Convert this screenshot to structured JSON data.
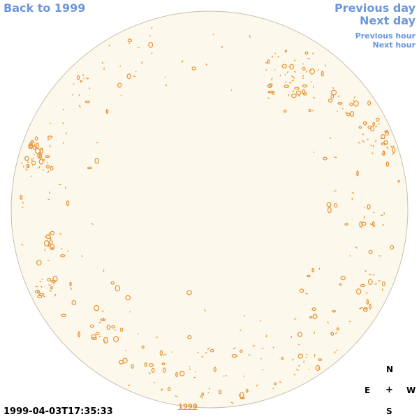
{
  "nav": {
    "back": "Back to 1999",
    "previous_day": "Previous day",
    "next_day": "Next day",
    "previous_hour": "Previous hour",
    "next_hour": "Next hour"
  },
  "timestamp": "1999-04-03T17:35:33",
  "year_link": "1999",
  "compass": {
    "n": "N",
    "e": "E",
    "w": "W",
    "s": "S",
    "center": "+"
  },
  "colors": {
    "link": "#6b96dd",
    "disk_fill": "#fdf8ec",
    "disk_border": "#c7bfae",
    "contour": "#e8902e"
  }
}
